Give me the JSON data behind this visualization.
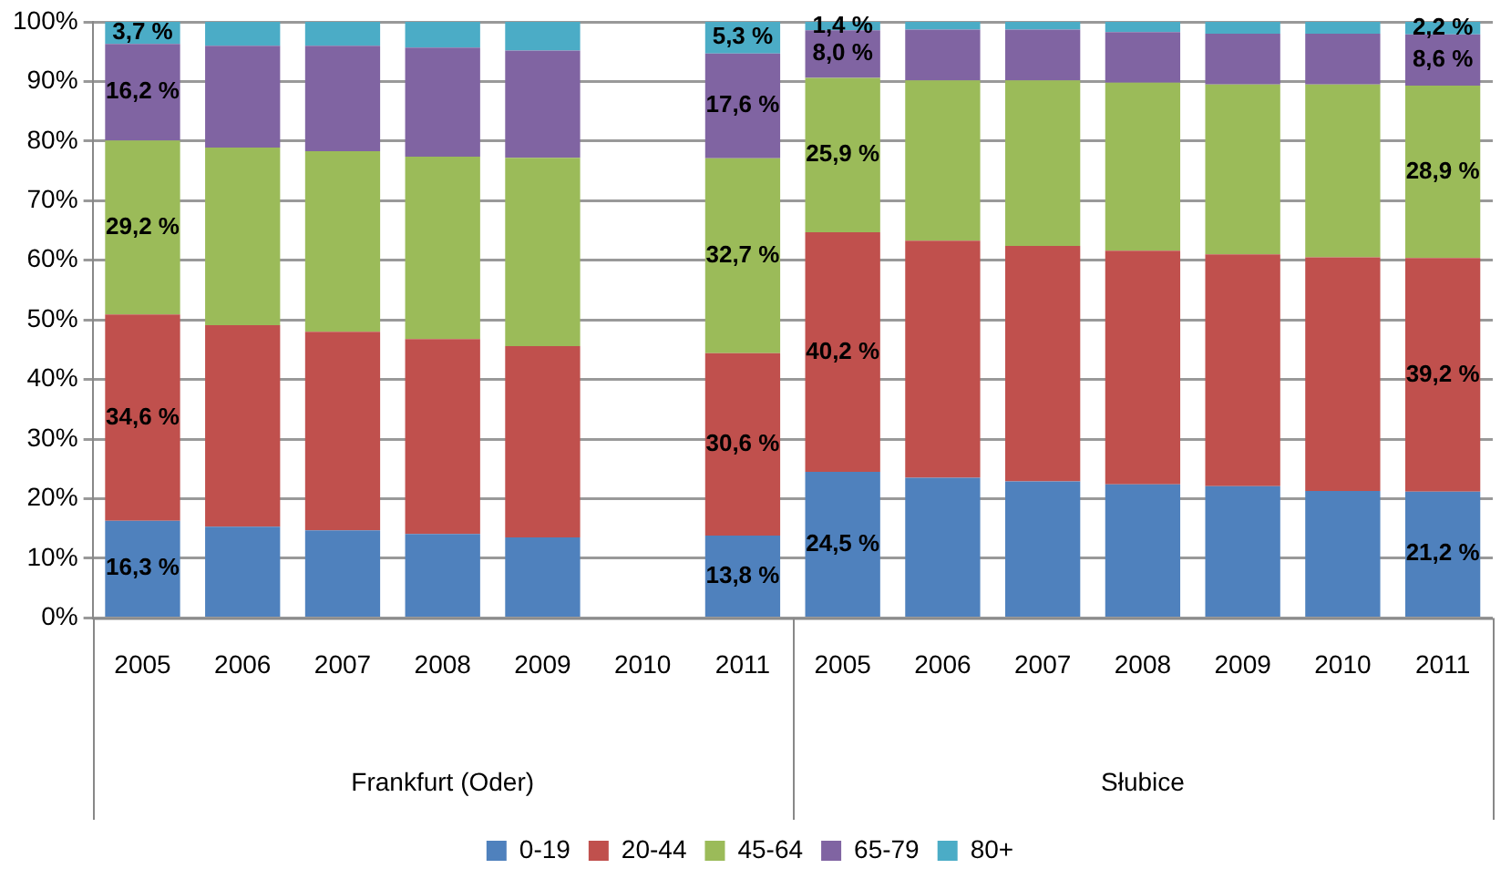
{
  "chart_data": {
    "type": "bar",
    "stacked": true,
    "categories": [
      "2005",
      "2006",
      "2007",
      "2008",
      "2009",
      "2010",
      "2011",
      "2005",
      "2006",
      "2007",
      "2008",
      "2009",
      "2010",
      "2011"
    ],
    "annotations": [
      "Frankfurt (Oder)",
      "Słubice"
    ],
    "series": [
      {
        "name": "0-19",
        "color": "#4f81bd",
        "values": [
          16.3,
          15.3,
          14.7,
          14.1,
          13.5,
          null,
          13.8,
          24.5,
          23.5,
          22.9,
          22.4,
          22.1,
          21.3,
          21.2
        ],
        "value_labels": [
          "16,3 %",
          null,
          null,
          null,
          null,
          null,
          "13,8 %",
          "24,5 %",
          null,
          null,
          null,
          null,
          null,
          "21,2 %"
        ]
      },
      {
        "name": "20-44",
        "color": "#c0504d",
        "values": [
          34.6,
          33.8,
          33.3,
          32.7,
          32.1,
          null,
          30.6,
          40.2,
          39.8,
          39.5,
          39.2,
          38.9,
          39.2,
          39.2
        ],
        "value_labels": [
          "34,6 %",
          null,
          null,
          null,
          null,
          null,
          "30,6 %",
          "40,2 %",
          null,
          null,
          null,
          null,
          null,
          "39,2 %"
        ]
      },
      {
        "name": "45-64",
        "color": "#9bbb59",
        "values": [
          29.2,
          29.8,
          30.3,
          30.6,
          31.6,
          null,
          32.7,
          25.9,
          26.9,
          27.8,
          28.2,
          28.5,
          29.0,
          28.9
        ],
        "value_labels": [
          "29,2 %",
          null,
          null,
          null,
          null,
          null,
          "32,7 %",
          "25,9 %",
          null,
          null,
          null,
          null,
          null,
          "28,9 %"
        ]
      },
      {
        "name": "65-79",
        "color": "#8064a2",
        "values": [
          16.2,
          17.1,
          17.7,
          18.3,
          18.0,
          null,
          17.6,
          8.0,
          8.5,
          8.5,
          8.5,
          8.5,
          8.5,
          8.6
        ],
        "value_labels": [
          "16,2 %",
          null,
          null,
          null,
          null,
          null,
          "17,6 %",
          "8,0 %",
          null,
          null,
          null,
          null,
          null,
          "8,6 %"
        ]
      },
      {
        "name": "80+",
        "color": "#4bacc6",
        "values": [
          3.7,
          4.0,
          4.0,
          4.3,
          4.8,
          null,
          5.3,
          1.4,
          1.3,
          1.3,
          1.7,
          2.0,
          2.0,
          2.2
        ],
        "value_labels": [
          "3,7 %",
          null,
          null,
          null,
          null,
          null,
          "5,3 %",
          "1,4 %",
          null,
          null,
          null,
          null,
          null,
          "2,2 %"
        ]
      }
    ],
    "ylim": [
      0,
      100
    ],
    "yticks": [
      {
        "value": 0,
        "label": "0%"
      },
      {
        "value": 10,
        "label": "10%"
      },
      {
        "value": 20,
        "label": "20%"
      },
      {
        "value": 30,
        "label": "30%"
      },
      {
        "value": 40,
        "label": "40%"
      },
      {
        "value": 50,
        "label": "50%"
      },
      {
        "value": 60,
        "label": "60%"
      },
      {
        "value": 70,
        "label": "70%"
      },
      {
        "value": 80,
        "label": "80%"
      },
      {
        "value": 90,
        "label": "90%"
      },
      {
        "value": 100,
        "label": "100%"
      }
    ],
    "grid": "y",
    "legend": "bottom"
  }
}
